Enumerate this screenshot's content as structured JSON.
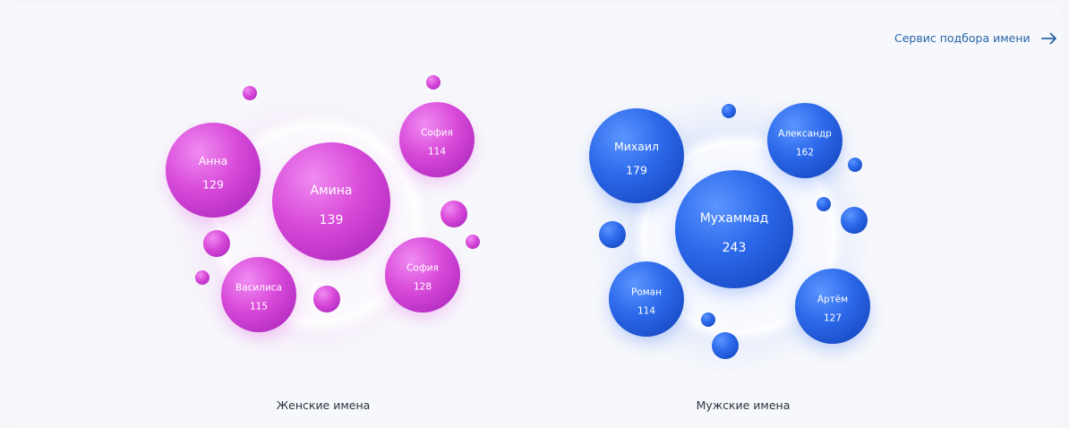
{
  "service_link": {
    "label": "Сервис подбора имени",
    "icon": "arrow-right-icon",
    "color": "#2763a8"
  },
  "chart_data": [
    {
      "type": "bubble",
      "title": "Женские имена",
      "color": "#d54ad9",
      "categories": [
        "Амина",
        "Анна",
        "София",
        "София",
        "Василиса"
      ],
      "values": [
        139,
        129,
        114,
        128,
        115
      ]
    },
    {
      "type": "bubble",
      "title": "Мужские имена",
      "color": "#2b68ea",
      "categories": [
        "Мухаммад",
        "Михаил",
        "Александр",
        "Роман",
        "Артём"
      ],
      "values": [
        243,
        179,
        162,
        114,
        127
      ]
    }
  ]
}
